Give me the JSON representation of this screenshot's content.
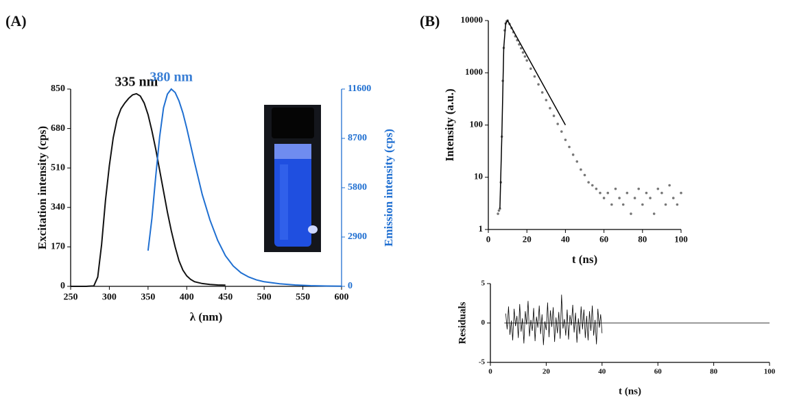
{
  "chart_data": [
    {
      "type": "line",
      "panel_label": "(A)",
      "xlabel": "λ (nm)",
      "ylabel": "Excitation intensity (cps)",
      "y2label": "Emission intensity (cps)",
      "xlim": [
        250,
        600
      ],
      "xticks": [
        250,
        300,
        350,
        400,
        450,
        500,
        550,
        600
      ],
      "ylim": [
        0,
        850
      ],
      "yticks": [
        0,
        170,
        340,
        510,
        680,
        850
      ],
      "y2lim": [
        0,
        11600
      ],
      "y2ticks": [
        0,
        2900,
        5800,
        8700,
        11600
      ],
      "y2color": "#1f6fd1",
      "annotations": [
        {
          "text": "335 nm",
          "color": "#111111"
        },
        {
          "text": "380 nm",
          "color": "#3a7fd5"
        }
      ],
      "series": [
        {
          "color": "#111111",
          "x": [
            250,
            260,
            270,
            280,
            285,
            290,
            295,
            300,
            305,
            310,
            315,
            320,
            325,
            330,
            335,
            340,
            345,
            350,
            355,
            360,
            365,
            370,
            375,
            380,
            385,
            390,
            395,
            400,
            405,
            410,
            420,
            430,
            440,
            450
          ],
          "values": [
            0,
            0,
            0,
            2,
            40,
            180,
            370,
            520,
            640,
            720,
            765,
            790,
            810,
            825,
            830,
            820,
            790,
            740,
            670,
            590,
            500,
            410,
            320,
            240,
            170,
            110,
            70,
            45,
            30,
            20,
            12,
            8,
            6,
            5
          ]
        },
        {
          "color": "#1f6fd1",
          "axis": "y2",
          "x": [
            350,
            355,
            360,
            365,
            370,
            375,
            380,
            385,
            390,
            395,
            400,
            410,
            420,
            430,
            440,
            450,
            460,
            470,
            480,
            490,
            500,
            520,
            540,
            560,
            580,
            600
          ],
          "values": [
            2100,
            4000,
            6500,
            8800,
            10500,
            11300,
            11600,
            11400,
            10900,
            10200,
            9300,
            7300,
            5400,
            3900,
            2700,
            1800,
            1200,
            800,
            550,
            380,
            270,
            150,
            80,
            40,
            20,
            10
          ]
        }
      ]
    },
    {
      "type": "scatter",
      "panel_label": "(B)",
      "xlabel": "t (ns)",
      "ylabel": "Intensity (a.u.)",
      "log_y": true,
      "xlim": [
        0,
        100
      ],
      "xticks": [
        0,
        20,
        40,
        60,
        80,
        100
      ],
      "ylim": [
        1,
        10000
      ],
      "yticks": [
        1,
        10,
        100,
        1000,
        10000
      ],
      "series": [
        {
          "color": "#777777",
          "mode": "points",
          "x": [
            5,
            5.5,
            6,
            6.5,
            7,
            7.5,
            8,
            8.5,
            9,
            9.5,
            10,
            11,
            12,
            13,
            14,
            15,
            16,
            17,
            18,
            19,
            20,
            22,
            24,
            26,
            28,
            30,
            32,
            34,
            36,
            38,
            40,
            42,
            44,
            46,
            48,
            50,
            52,
            54,
            56,
            58,
            60,
            62,
            64,
            66,
            68,
            70,
            72,
            74,
            76,
            78,
            80,
            82,
            84,
            86,
            88,
            90,
            92,
            94,
            96,
            98,
            100
          ],
          "values": [
            2,
            2.3,
            2.5,
            8,
            60,
            700,
            3000,
            6500,
            8800,
            9700,
            10000,
            8600,
            7200,
            6000,
            5000,
            4200,
            3500,
            2950,
            2450,
            2050,
            1720,
            1200,
            850,
            600,
            420,
            300,
            210,
            150,
            105,
            75,
            52,
            38,
            27,
            20,
            14,
            11,
            8,
            7,
            6,
            5,
            4,
            5,
            3,
            6,
            4,
            3,
            5,
            2,
            4,
            6,
            3,
            5,
            4,
            2,
            6,
            5,
            3,
            7,
            4,
            3,
            5
          ]
        },
        {
          "color": "#000000",
          "mode": "line",
          "x": [
            6,
            7,
            8,
            9,
            10,
            15,
            20,
            25,
            30,
            35,
            40
          ],
          "values": [
            2.5,
            60,
            3000,
            8800,
            10000,
            4640,
            2150,
            1000,
            464,
            215,
            100
          ]
        }
      ]
    },
    {
      "type": "line",
      "xlabel": "t (ns)",
      "ylabel": "Residuals",
      "xlim": [
        0,
        100
      ],
      "xticks": [
        0,
        20,
        40,
        60,
        80,
        100
      ],
      "ylim": [
        -5,
        5
      ],
      "yticks": [
        -5,
        0,
        5
      ],
      "series": [
        {
          "color": "#000000",
          "x": [
            5.5,
            6,
            6.5,
            7,
            7.5,
            8,
            8.5,
            9,
            9.5,
            10,
            10.5,
            11,
            11.5,
            12,
            12.5,
            13,
            13.5,
            14,
            14.5,
            15,
            15.5,
            16,
            16.5,
            17,
            17.5,
            18,
            18.5,
            19,
            19.5,
            20,
            20.5,
            21,
            21.5,
            22,
            22.5,
            23,
            23.5,
            24,
            24.5,
            25,
            25.5,
            26,
            26.5,
            27,
            27.5,
            28,
            28.5,
            29,
            29.5,
            30,
            30.5,
            31,
            31.5,
            32,
            32.5,
            33,
            33.5,
            34,
            34.5,
            35,
            35.5,
            36,
            36.5,
            37,
            37.5,
            38,
            38.5,
            39,
            39.5,
            40
          ],
          "values": [
            1.2,
            -0.8,
            2.1,
            -1.5,
            0.3,
            -2.2,
            1.8,
            -0.4,
            0.9,
            -1.9,
            2.4,
            -1.1,
            0.6,
            -2.6,
            1.5,
            -0.2,
            2.8,
            -1.7,
            0.4,
            -1.0,
            1.9,
            -2.3,
            0.8,
            -0.6,
            2.2,
            -1.4,
            1.1,
            -2.8,
            0.2,
            -0.9,
            2.6,
            -1.8,
            1.6,
            -0.5,
            2.0,
            -2.4,
            0.7,
            -1.3,
            1.4,
            -2.0,
            3.6,
            -0.7,
            0.5,
            -1.6,
            1.7,
            -2.1,
            1.0,
            -0.3,
            2.3,
            -1.2,
            1.3,
            -2.5,
            0.6,
            -1.4,
            2.1,
            -0.8,
            1.7,
            -1.9,
            0.9,
            -2.2,
            1.5,
            -1.0,
            2.2,
            -1.6,
            0.4,
            -2.7,
            1.8,
            -0.6,
            1.1,
            -1.3
          ]
        },
        {
          "color": "#000000",
          "x": [
            5,
            100
          ],
          "values": [
            0,
            0
          ]
        }
      ]
    }
  ]
}
